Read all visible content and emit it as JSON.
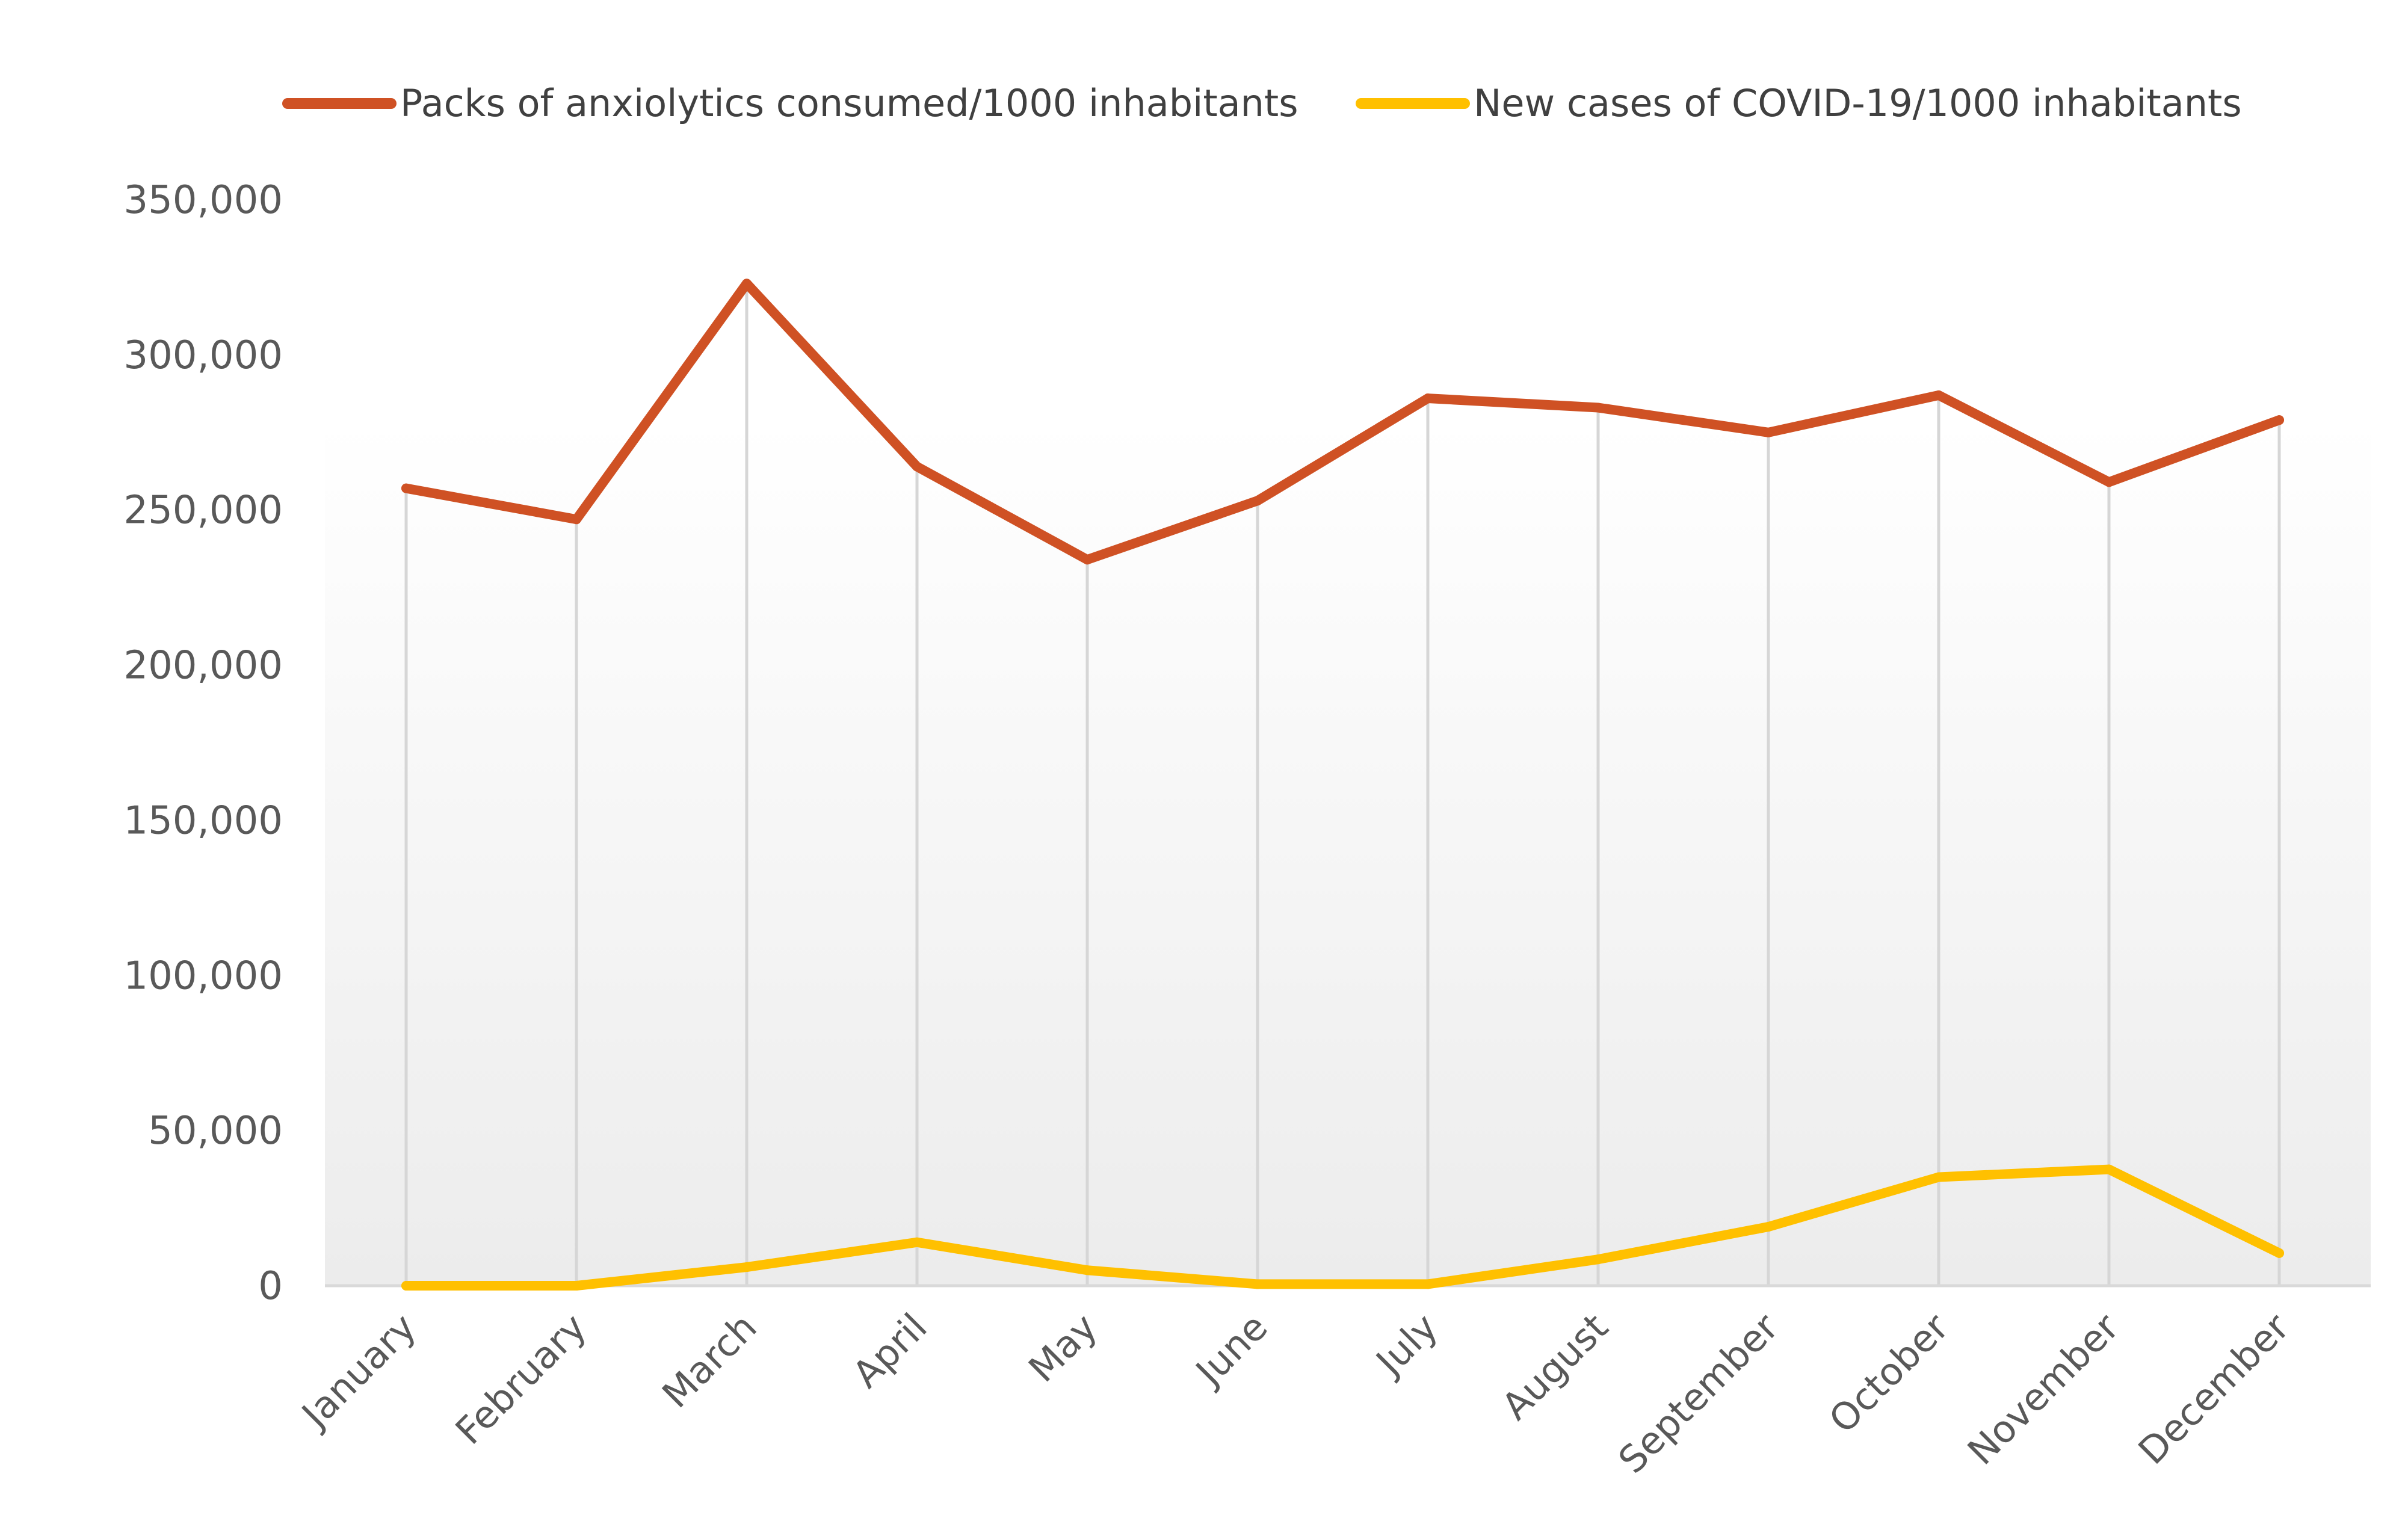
{
  "chart_data": {
    "type": "line",
    "title": "",
    "xlabel": "",
    "ylabel": "",
    "categories": [
      "January",
      "February",
      "March",
      "April",
      "May",
      "June",
      "July",
      "August",
      "September",
      "October",
      "November",
      "December"
    ],
    "series": [
      {
        "name": "Packs of anxiolytics consumed/1000 inhabitants",
        "color": "#CF5124",
        "values": [
          257000,
          247000,
          323000,
          264000,
          234000,
          253000,
          286000,
          283000,
          275000,
          287000,
          259000,
          279000
        ]
      },
      {
        "name": "New cases of COVID-19/1000 inhabitants",
        "color": "#FFC000",
        "values": [
          0,
          0,
          6000,
          14000,
          5000,
          500,
          500,
          8500,
          19000,
          35000,
          37500,
          10500
        ]
      }
    ],
    "ylim": [
      0,
      350000
    ],
    "yticks": [
      0,
      50000,
      100000,
      150000,
      200000,
      250000,
      300000,
      350000
    ],
    "ytick_labels": [
      "0",
      "50,000",
      "100,000",
      "150,000",
      "200,000",
      "250,000",
      "300,000",
      "350,000"
    ],
    "grid": "vertical drop lines per category",
    "legend": "top-center"
  }
}
